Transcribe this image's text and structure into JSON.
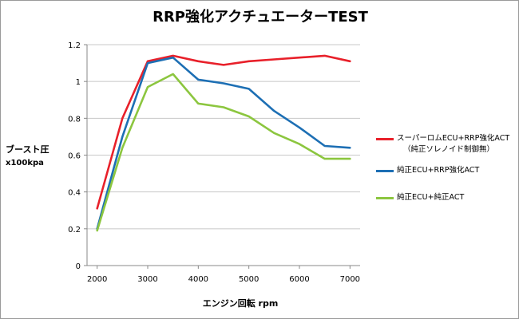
{
  "chart_data": {
    "type": "line",
    "title": "RRP強化アクチュエーターTEST",
    "xlabel": "エンジン回転 rpm",
    "ylabel": "ブースト圧",
    "ylabel_unit": "x100kpa",
    "x": [
      2000,
      2500,
      3000,
      3500,
      4000,
      4500,
      5000,
      5500,
      6000,
      6500,
      7000
    ],
    "x_ticks": [
      "2000",
      "3000",
      "4000",
      "5000",
      "6000",
      "7000"
    ],
    "y_ticks": [
      "0",
      "0.2",
      "0.4",
      "0.6",
      "0.8",
      "1",
      "1.2"
    ],
    "xlim": [
      1800,
      7200
    ],
    "ylim": [
      0,
      1.2
    ],
    "grid": "horizontal",
    "legend_position": "right",
    "series": [
      {
        "name": "スーパーロムECU+RRP強化ACT",
        "sub": "（純正ソレノイド制御無）",
        "color": "#e8202a",
        "values": [
          0.31,
          0.8,
          1.11,
          1.14,
          1.11,
          1.09,
          1.11,
          1.12,
          1.13,
          1.14,
          1.11
        ]
      },
      {
        "name": "純正ECU+RRP強化ACT",
        "color": "#1d6fb4",
        "values": [
          0.2,
          0.7,
          1.1,
          1.13,
          1.01,
          0.99,
          0.96,
          0.84,
          0.75,
          0.65,
          0.64
        ]
      },
      {
        "name": "純正ECU+純正ACT",
        "color": "#8cc63f",
        "values": [
          0.19,
          0.64,
          0.97,
          1.04,
          0.88,
          0.86,
          0.81,
          0.72,
          0.66,
          0.58,
          0.58
        ]
      }
    ]
  }
}
